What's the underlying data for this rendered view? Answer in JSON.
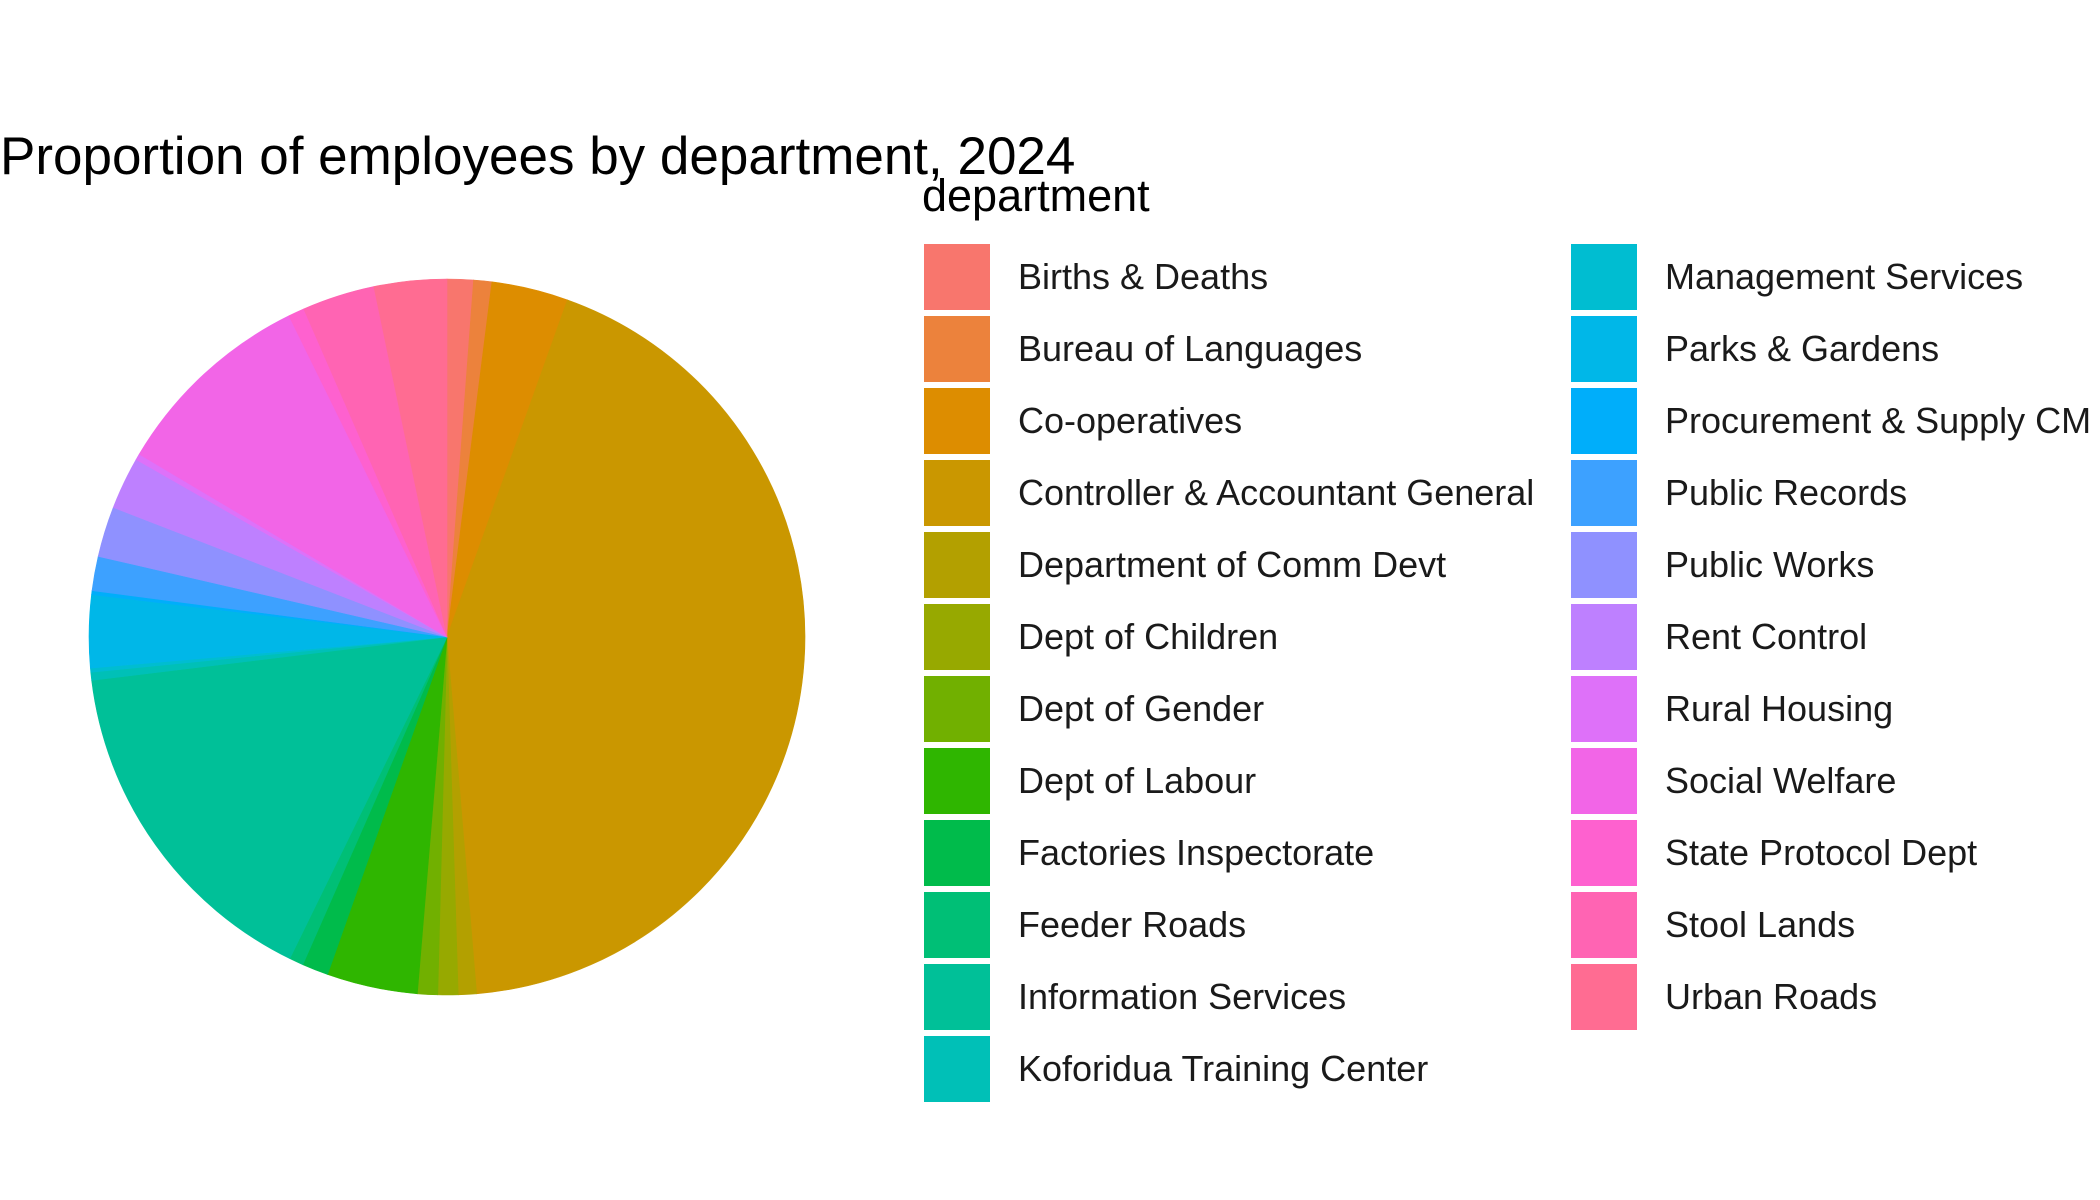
{
  "chart_data": {
    "type": "pie",
    "title": "Proportion of employees by department, 2024",
    "legend_title": "department",
    "legend_position": "right",
    "legend_columns": 2,
    "direction": "clockwise",
    "start": "top",
    "slices": [
      {
        "label": "Births & Deaths",
        "value": 1.3,
        "color": "#F8766D"
      },
      {
        "label": "Bureau of Languages",
        "value": 0.9,
        "color": "#EA8331"
      },
      {
        "label": "Co-operatives",
        "value": 3.8,
        "color": "#D89000"
      },
      {
        "label": "Controller & Accountant General",
        "value": 47.5,
        "color": "#C09B00"
      },
      {
        "label": "Department of Comm Devt",
        "value": 0.9,
        "color": "#A3A500"
      },
      {
        "label": "Dept of Children",
        "value": 1.0,
        "color": "#7CAE00"
      },
      {
        "label": "Dept of Gender",
        "value": 1.0,
        "color": "#39B600"
      },
      {
        "label": "Dept of Labour",
        "value": 4.5,
        "color": "#00BB4E"
      },
      {
        "label": "Factories Inspectorate",
        "value": 1.3,
        "color": "#00BF7D"
      },
      {
        "label": "Feeder Roads",
        "value": 0.7,
        "color": "#00C1A3"
      },
      {
        "label": "Information Services",
        "value": 17.4,
        "color": "#00BFC4"
      },
      {
        "label": "Koforidua Training Center",
        "value": 0.4,
        "color": "#00BAE0"
      },
      {
        "label": "Management Services",
        "value": 0.2,
        "color": "#00B0F6"
      },
      {
        "label": "Parks & Gardens",
        "value": 3.6,
        "color": "#35A2FF"
      },
      {
        "label": "Procurement & Supply CM",
        "value": 0.2,
        "color": "#9590FF"
      },
      {
        "label": "Public Records",
        "value": 1.7,
        "color": "#C77CFF"
      },
      {
        "label": "Public Works",
        "value": 2.5,
        "color": "#E76BF3"
      },
      {
        "label": "Rent Control",
        "value": 2.6,
        "color": "#FA62DB"
      },
      {
        "label": "Rural Housing",
        "value": 0.3,
        "color": "#FF62BC"
      },
      {
        "label": "Social Welfare",
        "value": 10.1,
        "color": "#FF6C91"
      },
      {
        "label": "State Protocol Dept",
        "value": 0.8,
        "color": "#F8766D"
      },
      {
        "label": "Stool Lands",
        "value": 3.6,
        "color": "#EA8331"
      },
      {
        "label": "Urban Roads",
        "value": 3.6,
        "color": "#D89000"
      }
    ]
  }
}
